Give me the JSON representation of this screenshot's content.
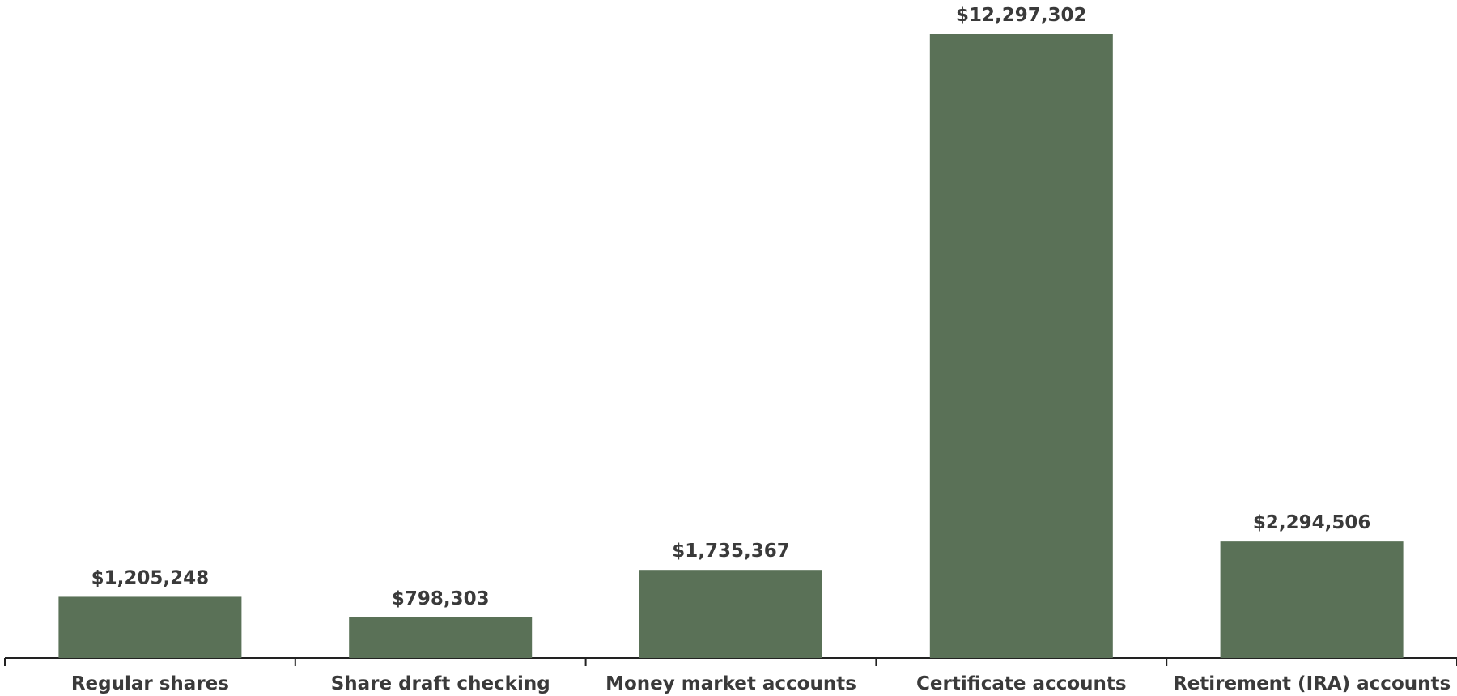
{
  "chart_data": {
    "type": "bar",
    "categories": [
      "Regular shares",
      "Share draft checking",
      "Money market accounts",
      "Certificate accounts",
      "Retirement (IRA) accounts"
    ],
    "values": [
      1205248,
      798303,
      1735367,
      12297302,
      2294506
    ],
    "data_labels": [
      "$1,205,248",
      "$798,303",
      "$1,735,367",
      "$12,297,302",
      "$2,294,506"
    ],
    "title": "",
    "xlabel": "",
    "ylabel": "",
    "ylim": [
      0,
      12297302
    ],
    "grid": false,
    "legend": "none",
    "colors": {
      "bar": "#5a7157",
      "axis": "#222222",
      "text": "#3a3a3a"
    }
  }
}
